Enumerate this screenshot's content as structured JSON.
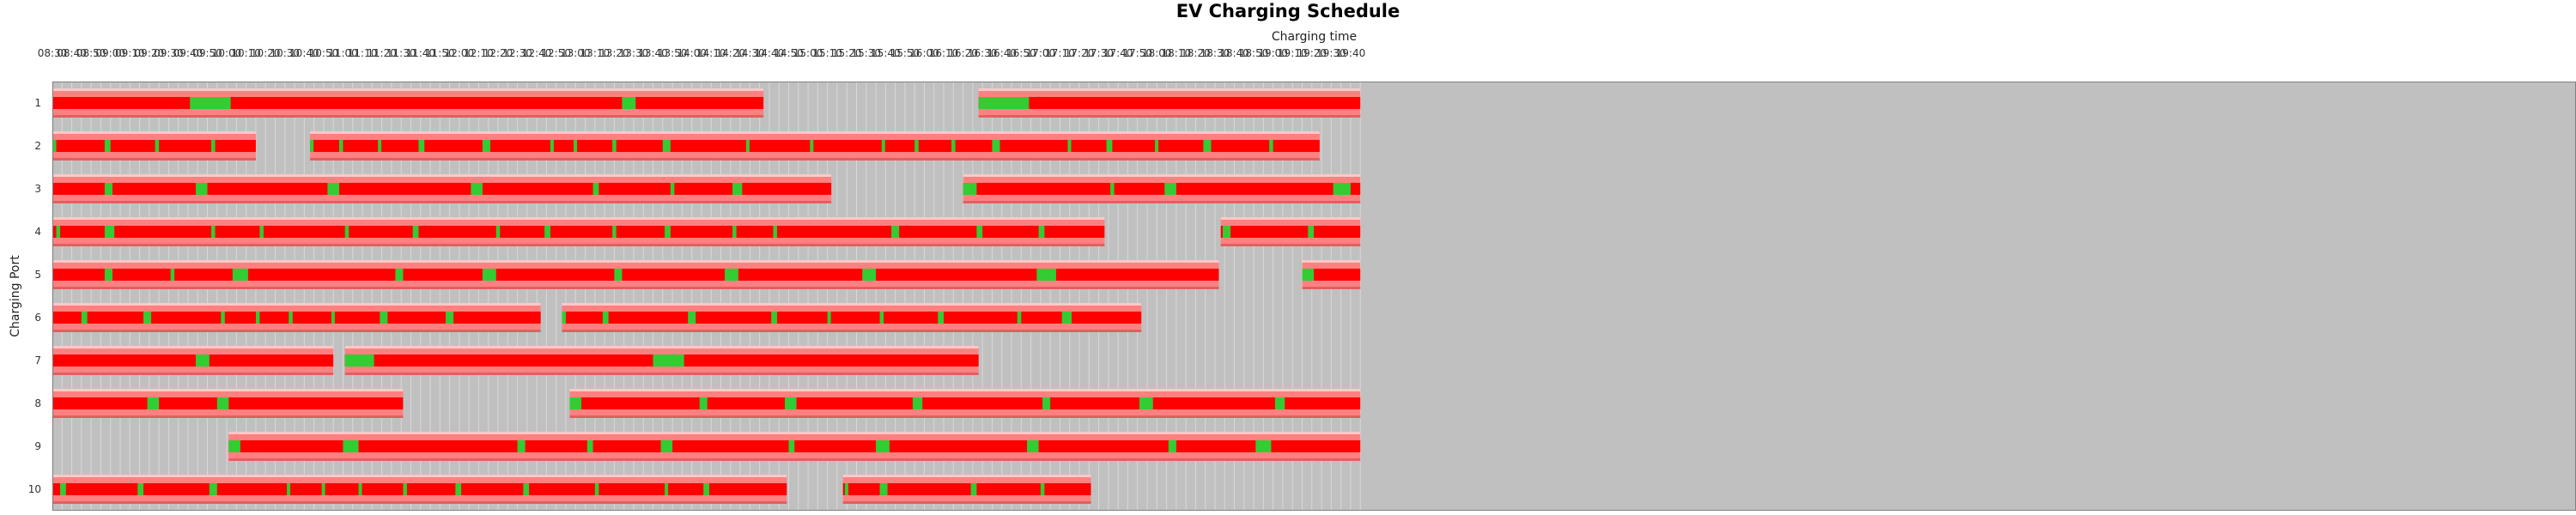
{
  "chart_data": {
    "type": "gantt",
    "title": "EV Charging Schedule",
    "xlabel": "Charging time",
    "ylabel": "Charging Port",
    "x_range": [
      "08:30",
      "19:45"
    ],
    "tick_interval_minutes": 10,
    "x_ticks": [
      "08:30",
      "08:40",
      "08:50",
      "09:00",
      "09:10",
      "09:20",
      "09:30",
      "09:40",
      "09:50",
      "10:00",
      "10:10",
      "10:20",
      "10:30",
      "10:40",
      "10:50",
      "11:00",
      "11:10",
      "11:20",
      "11:30",
      "11:40",
      "11:50",
      "12:00",
      "12:10",
      "12:20",
      "12:30",
      "12:40",
      "12:50",
      "13:00",
      "13:10",
      "13:20",
      "13:30",
      "13:40",
      "13:50",
      "14:00",
      "14:10",
      "14:20",
      "14:30",
      "14:40",
      "14:50",
      "15:00",
      "15:10",
      "15:20",
      "15:30",
      "15:40",
      "15:50",
      "16:00",
      "16:10",
      "16:20",
      "16:30",
      "16:40",
      "16:50",
      "17:00",
      "17:10",
      "17:20",
      "17:30",
      "17:40",
      "17:50",
      "18:00",
      "18:10",
      "18:20",
      "18:30",
      "18:40",
      "18:50",
      "19:00",
      "19:10",
      "19:20",
      "19:30",
      "19:40"
    ],
    "grid": true,
    "colors": {
      "background": "#c0c0c0",
      "grid": "#d8d8d8",
      "bar_outer": "#ff8080",
      "bar_inner": "#ff0000",
      "bar_highlight": "#ffc8c8",
      "bar_shadow": "#e06060",
      "segment": "#33cc33"
    },
    "ports": [
      {
        "label": "1",
        "bars": [
          [
            "08:30",
            "14:37"
          ],
          [
            "16:28",
            "19:45"
          ]
        ],
        "segments": [
          [
            "09:41",
            "10:02"
          ],
          [
            "13:24",
            "13:31"
          ],
          [
            "16:28",
            "16:54"
          ]
        ]
      },
      {
        "label": "2",
        "bars": [
          [
            "08:30",
            "10:15"
          ],
          [
            "10:43",
            "19:24"
          ]
        ],
        "segments": [
          [
            "08:30",
            "08:32"
          ],
          [
            "08:57",
            "09:00"
          ],
          [
            "09:23",
            "09:25"
          ],
          [
            "09:52",
            "09:54"
          ],
          [
            "10:43",
            "10:44"
          ],
          [
            "10:58",
            "11:00"
          ],
          [
            "11:18",
            "11:19"
          ],
          [
            "11:39",
            "11:42"
          ],
          [
            "12:12",
            "12:16"
          ],
          [
            "12:47",
            "12:48"
          ],
          [
            "12:59",
            "13:00"
          ],
          [
            "13:19",
            "13:21"
          ],
          [
            "13:45",
            "13:49"
          ],
          [
            "14:28",
            "14:29"
          ],
          [
            "15:01",
            "15:02"
          ],
          [
            "15:38",
            "15:39"
          ],
          [
            "15:55",
            "15:57"
          ],
          [
            "16:14",
            "16:16"
          ],
          [
            "16:35",
            "16:39"
          ],
          [
            "17:14",
            "17:15"
          ],
          [
            "17:34",
            "17:37"
          ],
          [
            "17:59",
            "18:00"
          ],
          [
            "18:24",
            "18:28"
          ],
          [
            "18:58",
            "19:00"
          ]
        ]
      },
      {
        "label": "3",
        "bars": [
          [
            "08:30",
            "15:12"
          ],
          [
            "16:20",
            "19:45"
          ]
        ],
        "segments": [
          [
            "08:57",
            "09:01"
          ],
          [
            "09:44",
            "09:50"
          ],
          [
            "10:52",
            "10:58"
          ],
          [
            "12:06",
            "12:12"
          ],
          [
            "13:09",
            "13:12"
          ],
          [
            "13:49",
            "13:51"
          ],
          [
            "14:21",
            "14:26"
          ],
          [
            "16:20",
            "16:27"
          ],
          [
            "17:36",
            "17:38"
          ],
          [
            "18:04",
            "18:10"
          ],
          [
            "19:31",
            "19:40"
          ]
        ]
      },
      {
        "label": "4",
        "bars": [
          [
            "08:30",
            "17:33"
          ],
          [
            "18:33",
            "19:45"
          ]
        ],
        "segments": [
          [
            "08:32",
            "08:34"
          ],
          [
            "08:57",
            "09:02"
          ],
          [
            "09:52",
            "09:54"
          ],
          [
            "10:17",
            "10:19"
          ],
          [
            "11:01",
            "11:03"
          ],
          [
            "11:36",
            "11:39"
          ],
          [
            "12:19",
            "12:21"
          ],
          [
            "12:44",
            "12:47"
          ],
          [
            "13:19",
            "13:21"
          ],
          [
            "13:46",
            "13:49"
          ],
          [
            "14:21",
            "14:23"
          ],
          [
            "14:42",
            "14:44"
          ],
          [
            "15:43",
            "15:47"
          ],
          [
            "16:27",
            "16:30"
          ],
          [
            "16:59",
            "17:02"
          ],
          [
            "18:34",
            "18:38"
          ],
          [
            "19:18",
            "19:21"
          ]
        ]
      },
      {
        "label": "5",
        "bars": [
          [
            "08:30",
            "18:32"
          ],
          [
            "19:15",
            "19:45"
          ]
        ],
        "segments": [
          [
            "08:57",
            "09:01"
          ],
          [
            "09:31",
            "09:33"
          ],
          [
            "10:03",
            "10:11"
          ],
          [
            "11:27",
            "11:31"
          ],
          [
            "12:12",
            "12:19"
          ],
          [
            "13:20",
            "13:24"
          ],
          [
            "14:17",
            "14:24"
          ],
          [
            "15:28",
            "15:35"
          ],
          [
            "16:58",
            "17:08"
          ],
          [
            "19:15",
            "19:21"
          ]
        ]
      },
      {
        "label": "6",
        "bars": [
          [
            "08:30",
            "12:42"
          ],
          [
            "12:53",
            "17:52"
          ]
        ],
        "segments": [
          [
            "08:45",
            "08:48"
          ],
          [
            "09:17",
            "09:21"
          ],
          [
            "09:57",
            "09:59"
          ],
          [
            "10:15",
            "10:17"
          ],
          [
            "10:32",
            "10:34"
          ],
          [
            "10:54",
            "10:55"
          ],
          [
            "11:19",
            "11:23"
          ],
          [
            "11:53",
            "11:57"
          ],
          [
            "12:53",
            "12:55"
          ],
          [
            "13:14",
            "13:17"
          ],
          [
            "13:58",
            "14:02"
          ],
          [
            "14:41",
            "14:44"
          ],
          [
            "15:10",
            "15:11"
          ],
          [
            "15:37",
            "15:39"
          ],
          [
            "16:07",
            "16:10"
          ],
          [
            "16:48",
            "16:50"
          ],
          [
            "17:11",
            "17:16"
          ]
        ]
      },
      {
        "label": "7",
        "bars": [
          [
            "08:30",
            "10:55"
          ],
          [
            "11:01",
            "16:28"
          ]
        ],
        "segments": [
          [
            "09:44",
            "09:51"
          ],
          [
            "11:01",
            "11:16"
          ],
          [
            "13:40",
            "13:56"
          ]
        ]
      },
      {
        "label": "8",
        "bars": [
          [
            "08:30",
            "11:31"
          ],
          [
            "12:57",
            "19:45"
          ]
        ],
        "segments": [
          [
            "09:19",
            "09:25"
          ],
          [
            "09:55",
            "10:01"
          ],
          [
            "12:57",
            "13:03"
          ],
          [
            "14:04",
            "14:08"
          ],
          [
            "14:48",
            "14:54"
          ],
          [
            "15:54",
            "15:59"
          ],
          [
            "17:01",
            "17:05"
          ],
          [
            "17:51",
            "17:58"
          ],
          [
            "19:01",
            "19:06"
          ]
        ]
      },
      {
        "label": "9",
        "bars": [
          [
            "10:01",
            "19:45"
          ]
        ],
        "segments": [
          [
            "10:01",
            "10:07"
          ],
          [
            "11:00",
            "11:08"
          ],
          [
            "12:30",
            "12:34"
          ],
          [
            "13:06",
            "13:09"
          ],
          [
            "13:44",
            "13:50"
          ],
          [
            "14:50",
            "14:53"
          ],
          [
            "15:35",
            "15:42"
          ],
          [
            "16:53",
            "16:59"
          ],
          [
            "18:06",
            "18:10"
          ],
          [
            "18:51",
            "18:59"
          ]
        ]
      },
      {
        "label": "10",
        "bars": [
          [
            "08:30",
            "14:49"
          ],
          [
            "15:18",
            "17:26"
          ]
        ],
        "segments": [
          [
            "08:34",
            "08:37"
          ],
          [
            "09:14",
            "09:17"
          ],
          [
            "09:51",
            "09:55"
          ],
          [
            "10:31",
            "10:32"
          ],
          [
            "10:49",
            "10:50"
          ],
          [
            "11:08",
            "11:09"
          ],
          [
            "11:31",
            "11:33"
          ],
          [
            "11:58",
            "12:01"
          ],
          [
            "12:33",
            "12:36"
          ],
          [
            "13:10",
            "13:12"
          ],
          [
            "13:46",
            "13:47"
          ],
          [
            "14:06",
            "14:09"
          ],
          [
            "15:19",
            "15:20"
          ],
          [
            "15:37",
            "15:41"
          ],
          [
            "16:24",
            "16:27"
          ],
          [
            "17:00",
            "17:02"
          ]
        ]
      }
    ]
  }
}
